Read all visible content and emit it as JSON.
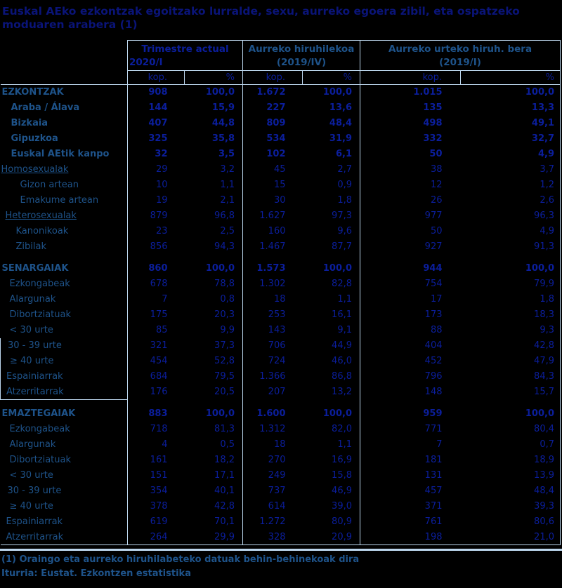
{
  "title": "Euskal AEko ezkontzak egoitzako lurralde,  sexu, aurreko egoera zibil, eta ospatzeko moduaren arabera (1)",
  "colors": {
    "background": "#000000",
    "border": "#bdd7ee",
    "numbers": "#0b1e9c",
    "labels": "#1e538a",
    "title": "#0a1478"
  },
  "table": {
    "col_groups": [
      {
        "line1": "Trimestre actual",
        "line2": "2020/I",
        "accent": true
      },
      {
        "line1": "Aurreko hiruhilekoa",
        "line2": "(2019/IV)",
        "accent": false
      },
      {
        "line1": "Aurreko urteko hiruh. bera",
        "line2": "(2019/I)",
        "accent": false
      }
    ],
    "sub_headers": [
      "kop.",
      "%",
      "kop.",
      "%",
      "kop.",
      "%"
    ],
    "rows": [
      {
        "label": "EZKONTZAK",
        "bold": true,
        "underline": false,
        "section": false,
        "indent": 2,
        "left_border": false,
        "rule_below": false,
        "cells": [
          "908",
          "100,0",
          "1.672",
          "100,0",
          "1.015",
          "100,0"
        ]
      },
      {
        "label": "Araba / Álava",
        "bold": true,
        "underline": false,
        "section": false,
        "indent": 15,
        "left_border": false,
        "rule_below": false,
        "cells": [
          "144",
          "15,9",
          "227",
          "13,6",
          "135",
          "13,3"
        ]
      },
      {
        "label": "Bizkaia",
        "bold": true,
        "underline": false,
        "section": false,
        "indent": 15,
        "left_border": false,
        "rule_below": false,
        "cells": [
          "407",
          "44,8",
          "809",
          "48,4",
          "498",
          "49,1"
        ]
      },
      {
        "label": "Gipuzkoa",
        "bold": true,
        "underline": false,
        "section": false,
        "indent": 15,
        "left_border": false,
        "rule_below": false,
        "cells": [
          "325",
          "35,8",
          "534",
          "31,9",
          "332",
          "32,7"
        ]
      },
      {
        "label": "Euskal AEtik kanpo",
        "bold": true,
        "underline": false,
        "section": false,
        "indent": 15,
        "left_border": false,
        "rule_below": false,
        "cells": [
          "32",
          "3,5",
          "102",
          "6,1",
          "50",
          "4,9"
        ]
      },
      {
        "label": "Homosexualak",
        "bold": false,
        "underline": true,
        "section": false,
        "indent": 1,
        "left_border": false,
        "rule_below": false,
        "cells": [
          "29",
          "3,2",
          "45",
          "2,7",
          "38",
          "3,7"
        ]
      },
      {
        "label": "Gizon artean",
        "bold": false,
        "underline": false,
        "section": false,
        "indent": 28,
        "left_border": false,
        "rule_below": false,
        "cells": [
          "10",
          "1,1",
          "15",
          "0,9",
          "12",
          "1,2"
        ]
      },
      {
        "label": "Emakume artean",
        "bold": false,
        "underline": false,
        "section": false,
        "indent": 28,
        "left_border": false,
        "rule_below": false,
        "cells": [
          "19",
          "2,1",
          "30",
          "1,8",
          "26",
          "2,6"
        ]
      },
      {
        "label": "Heterosexualak",
        "bold": false,
        "underline": true,
        "section": false,
        "indent": 7,
        "left_border": false,
        "rule_below": false,
        "cells": [
          "879",
          "96,8",
          "1.627",
          "97,3",
          "977",
          "96,3"
        ]
      },
      {
        "label": "Kanonikoak",
        "bold": false,
        "underline": false,
        "section": false,
        "indent": 22,
        "left_border": false,
        "rule_below": false,
        "cells": [
          "23",
          "2,5",
          "160",
          "9,6",
          "50",
          "4,9"
        ]
      },
      {
        "label": "Zibilak",
        "bold": false,
        "underline": false,
        "section": false,
        "indent": 22,
        "left_border": false,
        "rule_below": false,
        "cells": [
          "856",
          "94,3",
          "1.467",
          "87,7",
          "927",
          "91,3"
        ]
      },
      {
        "label": "SENARGAIAK",
        "bold": true,
        "underline": false,
        "section": true,
        "indent": 2,
        "left_border": false,
        "rule_below": false,
        "cells": [
          "860",
          "100,0",
          "1.573",
          "100,0",
          "944",
          "100,0"
        ]
      },
      {
        "label": "Ezkongabeak",
        "bold": false,
        "underline": false,
        "section": false,
        "indent": 13,
        "left_border": false,
        "rule_below": false,
        "cells": [
          "678",
          "78,8",
          "1.302",
          "82,8",
          "754",
          "79,9"
        ]
      },
      {
        "label": "Alargunak",
        "bold": false,
        "underline": false,
        "section": false,
        "indent": 13,
        "left_border": false,
        "rule_below": false,
        "cells": [
          "7",
          "0,8",
          "18",
          "1,1",
          "17",
          "1,8"
        ]
      },
      {
        "label": "Dibortziatuak",
        "bold": false,
        "underline": false,
        "section": false,
        "indent": 13,
        "left_border": false,
        "rule_below": false,
        "cells": [
          "175",
          "20,3",
          "253",
          "16,1",
          "173",
          "18,3"
        ]
      },
      {
        "label": "< 30 urte",
        "bold": false,
        "underline": false,
        "section": false,
        "indent": 13,
        "left_border": false,
        "rule_below": false,
        "cells": [
          "85",
          "9,9",
          "143",
          "9,1",
          "88",
          "9,3"
        ]
      },
      {
        "label": "30 - 39 urte",
        "bold": false,
        "underline": false,
        "section": false,
        "indent": 10,
        "left_border": true,
        "rule_below": false,
        "cells": [
          "321",
          "37,3",
          "706",
          "44,9",
          "404",
          "42,8"
        ]
      },
      {
        "label": "≥ 40 urte",
        "bold": false,
        "underline": false,
        "section": false,
        "indent": 13,
        "left_border": true,
        "rule_below": false,
        "cells": [
          "454",
          "52,8",
          "724",
          "46,0",
          "452",
          "47,9"
        ]
      },
      {
        "label": "Espainiarrak",
        "bold": false,
        "underline": false,
        "section": false,
        "indent": 8,
        "left_border": true,
        "rule_below": false,
        "cells": [
          "684",
          "79,5",
          "1.366",
          "86,8",
          "796",
          "84,3"
        ]
      },
      {
        "label": "Atzerritarrak",
        "bold": false,
        "underline": false,
        "section": false,
        "indent": 8,
        "left_border": true,
        "rule_below": true,
        "cells": [
          "176",
          "20,5",
          "207",
          "13,2",
          "148",
          "15,7"
        ]
      },
      {
        "label": "EMAZTEGAIAK",
        "bold": true,
        "underline": false,
        "section": true,
        "indent": 2,
        "left_border": false,
        "rule_below": false,
        "cells": [
          "883",
          "100,0",
          "1.600",
          "100,0",
          "959",
          "100,0"
        ]
      },
      {
        "label": "Ezkongabeak",
        "bold": false,
        "underline": false,
        "section": false,
        "indent": 13,
        "left_border": false,
        "rule_below": false,
        "cells": [
          "718",
          "81,3",
          "1.312",
          "82,0",
          "771",
          "80,4"
        ]
      },
      {
        "label": "Alargunak",
        "bold": false,
        "underline": false,
        "section": false,
        "indent": 13,
        "left_border": false,
        "rule_below": false,
        "cells": [
          "4",
          "0,5",
          "18",
          "1,1",
          "7",
          "0,7"
        ]
      },
      {
        "label": "Dibortziatuak",
        "bold": false,
        "underline": false,
        "section": false,
        "indent": 13,
        "left_border": false,
        "rule_below": false,
        "cells": [
          "161",
          "18,2",
          "270",
          "16,9",
          "181",
          "18,9"
        ]
      },
      {
        "label": "< 30 urte",
        "bold": false,
        "underline": false,
        "section": false,
        "indent": 13,
        "left_border": false,
        "rule_below": false,
        "cells": [
          "151",
          "17,1",
          "249",
          "15,8",
          "131",
          "13,9"
        ]
      },
      {
        "label": "30 - 39 urte",
        "bold": false,
        "underline": false,
        "section": false,
        "indent": 10,
        "left_border": false,
        "rule_below": false,
        "cells": [
          "354",
          "40,1",
          "737",
          "46,9",
          "457",
          "48,4"
        ]
      },
      {
        "label": "≥ 40 urte",
        "bold": false,
        "underline": false,
        "section": false,
        "indent": 13,
        "left_border": false,
        "rule_below": false,
        "cells": [
          "378",
          "42,8",
          "614",
          "39,0",
          "371",
          "39,3"
        ]
      },
      {
        "label": "Espainiarrak",
        "bold": false,
        "underline": false,
        "section": false,
        "indent": 8,
        "left_border": false,
        "rule_below": false,
        "cells": [
          "619",
          "70,1",
          "1.272",
          "80,9",
          "761",
          "80,6"
        ]
      },
      {
        "label": "Atzerritarrak",
        "bold": false,
        "underline": false,
        "section": false,
        "indent": 8,
        "left_border": false,
        "rule_below": false,
        "cells": [
          "264",
          "29,9",
          "328",
          "20,9",
          "198",
          "21,0"
        ]
      }
    ]
  },
  "footnotes": [
    "(1) Oraingo eta aurreko hiruhilabeteko datuak behin-behinekoak dira",
    "Iturria: Eustat. Ezkontzen estatistika"
  ]
}
